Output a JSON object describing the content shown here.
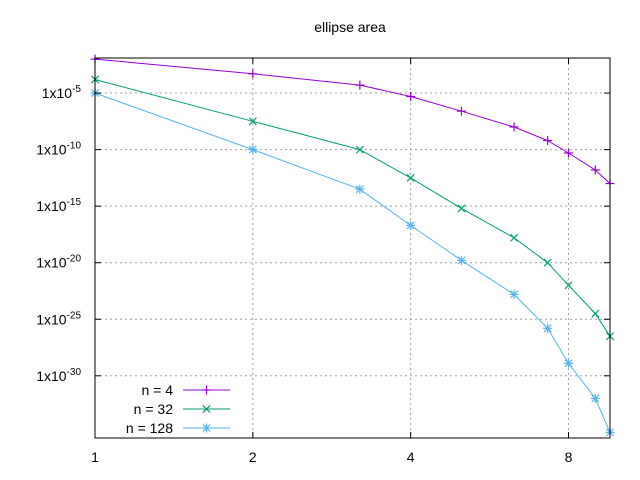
{
  "chart_data": {
    "type": "line",
    "title": "ellipse area",
    "xlabel": "",
    "ylabel": "",
    "x_scale": "log2",
    "y_scale": "log10",
    "xlim": [
      1,
      9.6
    ],
    "ylim": [
      -35.5,
      -1.9
    ],
    "grid": true,
    "legend_position": "bottom-left",
    "x_ticks": [
      {
        "value": 1,
        "label": "1"
      },
      {
        "value": 2,
        "label": "2"
      },
      {
        "value": 4,
        "label": "4"
      },
      {
        "value": 8,
        "label": "8"
      }
    ],
    "y_ticks": [
      {
        "exp": -5,
        "base": "1x10",
        "sup": "-5"
      },
      {
        "exp": -10,
        "base": "1x10",
        "sup": "-10"
      },
      {
        "exp": -15,
        "base": "1x10",
        "sup": "-15"
      },
      {
        "exp": -20,
        "base": "1x10",
        "sup": "-20"
      },
      {
        "exp": -25,
        "base": "1x10",
        "sup": "-25"
      },
      {
        "exp": -30,
        "base": "1x10",
        "sup": "-30"
      }
    ],
    "series": [
      {
        "name": "n = 4",
        "marker": "plus",
        "color": "#9400d3",
        "x": [
          1,
          2,
          3.2,
          4,
          5,
          6.3,
          7.3,
          8,
          9,
          9.6
        ],
        "log10_y": [
          -2.0,
          -3.3,
          -4.3,
          -5.3,
          -6.6,
          -8.0,
          -9.2,
          -10.3,
          -11.8,
          -13.0
        ]
      },
      {
        "name": "n = 32",
        "marker": "cross",
        "color": "#009e73",
        "x": [
          1,
          2,
          3.2,
          4,
          5,
          6.3,
          7.3,
          8,
          9,
          9.6
        ],
        "log10_y": [
          -3.8,
          -7.5,
          -10.0,
          -12.5,
          -15.2,
          -17.8,
          -20.0,
          -22.0,
          -24.5,
          -26.5
        ]
      },
      {
        "name": "n = 128",
        "marker": "star",
        "color": "#56b4e9",
        "x": [
          1,
          2,
          3.2,
          4,
          5,
          6.3,
          7.3,
          8,
          9,
          9.6
        ],
        "log10_y": [
          -5.0,
          -10.0,
          -13.5,
          -16.7,
          -19.8,
          -22.8,
          -25.8,
          -28.9,
          -32.0,
          -35.0
        ]
      }
    ]
  }
}
